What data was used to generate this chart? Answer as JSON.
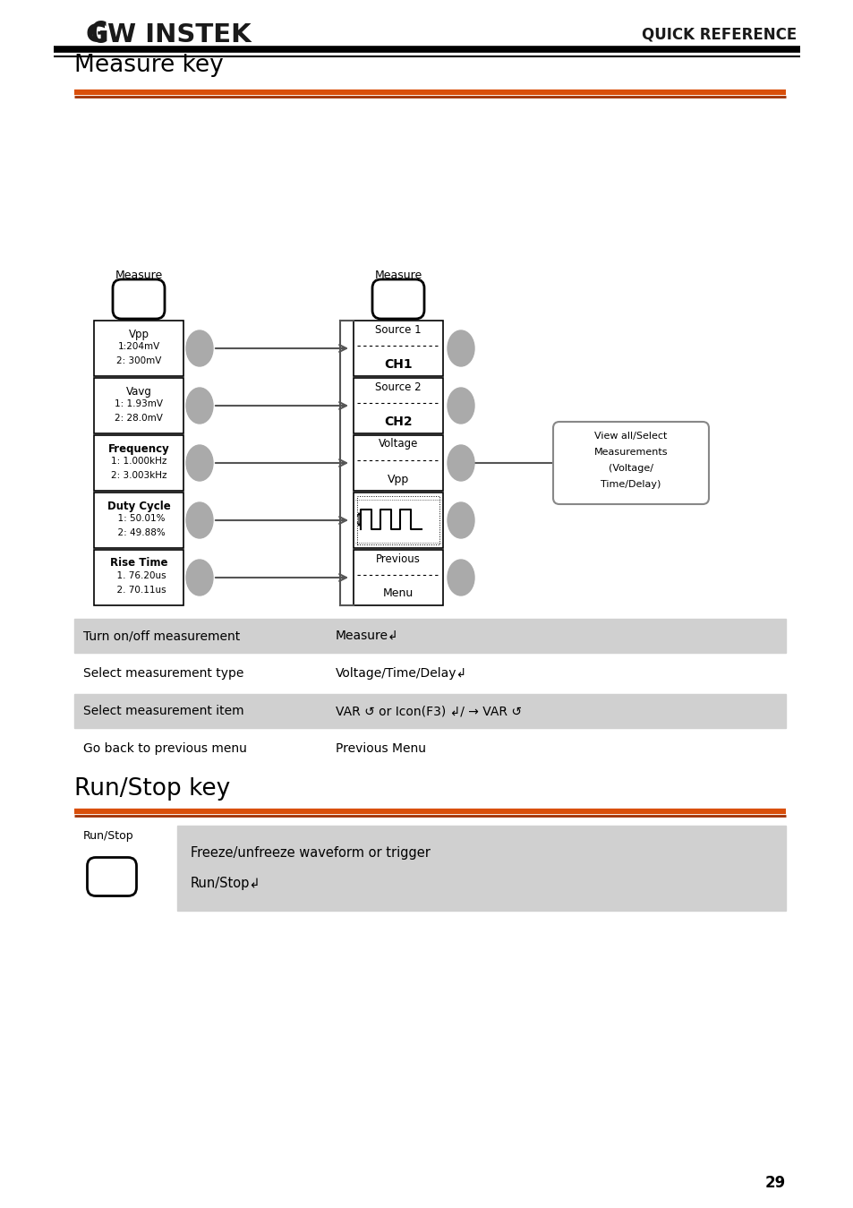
{
  "bg_color": "#ffffff",
  "orange_color": "#d94f0a",
  "dark_orange": "#a03000",
  "gray_table": "#d0d0d0",
  "gray_oval": "#aaaaaa",
  "quick_ref": "QUICK REFERENCE",
  "page_num": "29",
  "section1_title": "Measure key",
  "section2_title": "Run/Stop key",
  "left_boxes": [
    {
      "line1": "Vpp",
      "line2": "1:204mV",
      "line3": "2: 300mV",
      "bold1": false
    },
    {
      "line1": "Vavg",
      "line2": "1: 1.93mV",
      "line3": "2: 28.0mV",
      "bold1": false
    },
    {
      "line1": "Frequency",
      "line2": "1: 1.000kHz",
      "line3": "2: 3.003kHz",
      "bold1": true
    },
    {
      "line1": "Duty Cycle",
      "line2": "  1: 50.01%",
      "line3": "  2: 49.88%",
      "bold1": true
    },
    {
      "line1": "Rise Time",
      "line2": "  1. 76.20us",
      "line3": "  2. 70.11us",
      "bold1": true
    }
  ],
  "right_boxes": [
    {
      "line1": "Source 1",
      "line2": "CH1",
      "bold2": true,
      "waveform": false
    },
    {
      "line1": "Source 2",
      "line2": "CH2",
      "bold2": true,
      "waveform": false
    },
    {
      "line1": "Voltage",
      "line2": "Vpp",
      "bold2": false,
      "waveform": false
    },
    {
      "line1": "",
      "line2": "",
      "bold2": false,
      "waveform": true
    },
    {
      "line1": "Previous",
      "line2": "Menu",
      "bold2": false,
      "waveform": false
    }
  ],
  "instruction_rows": [
    {
      "label": "Turn on/off measurement",
      "value": "Measure↲",
      "shaded": true
    },
    {
      "label": "Select measurement type",
      "value": "Voltage/Time/Delay↲",
      "shaded": false
    },
    {
      "label": "Select measurement item",
      "value": "VAR ↺ or Icon(F3) ↲/ → VAR ↺",
      "shaded": true
    },
    {
      "label": "Go back to previous menu",
      "value": "Previous Menu",
      "shaded": false
    }
  ],
  "runstop_label": "Run/Stop",
  "runstop_desc": "Freeze/unfreeze waveform or trigger",
  "runstop_key": "Run/Stop↲"
}
